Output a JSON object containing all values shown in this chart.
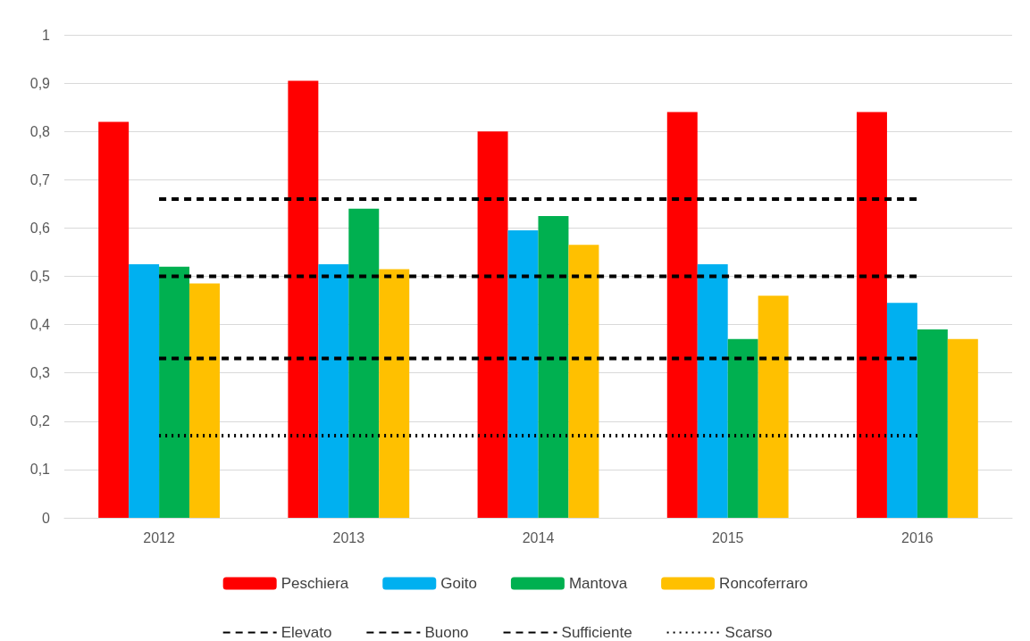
{
  "chart_data": {
    "type": "bar",
    "categories": [
      "2012",
      "2013",
      "2014",
      "2015",
      "2016"
    ],
    "series": [
      {
        "name": "Peschiera",
        "color": "#ff0000",
        "values": [
          0.82,
          0.905,
          0.8,
          0.84,
          0.84
        ]
      },
      {
        "name": "Goito",
        "color": "#00b0f0",
        "values": [
          0.525,
          0.525,
          0.595,
          0.525,
          0.445
        ]
      },
      {
        "name": "Mantova",
        "color": "#00b050",
        "values": [
          0.52,
          0.64,
          0.625,
          0.37,
          0.39
        ]
      },
      {
        "name": "Roncoferraro",
        "color": "#ffc000",
        "values": [
          0.485,
          0.515,
          0.565,
          0.46,
          0.37
        ]
      },
      {
        "name": "Elevato",
        "type": "line",
        "color": "#000000",
        "line_style": "dashed",
        "values": [
          0.66,
          0.66,
          0.66,
          0.66,
          0.66
        ]
      },
      {
        "name": "Buono",
        "type": "line",
        "color": "#000000",
        "line_style": "dashed",
        "values": [
          0.5,
          0.5,
          0.5,
          0.5,
          0.5
        ]
      },
      {
        "name": "Sufficiente",
        "type": "line",
        "color": "#000000",
        "line_style": "dashed",
        "values": [
          0.33,
          0.33,
          0.33,
          0.33,
          0.33
        ]
      },
      {
        "name": "Scarso",
        "type": "line",
        "color": "#000000",
        "line_style": "dotted",
        "values": [
          0.17,
          0.17,
          0.17,
          0.17,
          0.17
        ]
      }
    ],
    "ylim": [
      0,
      1
    ],
    "yticks": [
      0,
      {
        "value": 0.1,
        "label": "0,1"
      },
      {
        "value": 0.2,
        "label": "0,2"
      },
      {
        "value": 0.3,
        "label": "0,3"
      },
      {
        "value": 0.4,
        "label": "0,4"
      },
      {
        "value": 0.5,
        "label": "0,5"
      },
      {
        "value": 0.6,
        "label": "0,6"
      },
      {
        "value": 0.7,
        "label": "0,7"
      },
      {
        "value": 0.8,
        "label": "0,8"
      },
      {
        "value": 0.9,
        "label": "0,9"
      },
      1
    ],
    "grid": "y",
    "legend": "bottom"
  }
}
